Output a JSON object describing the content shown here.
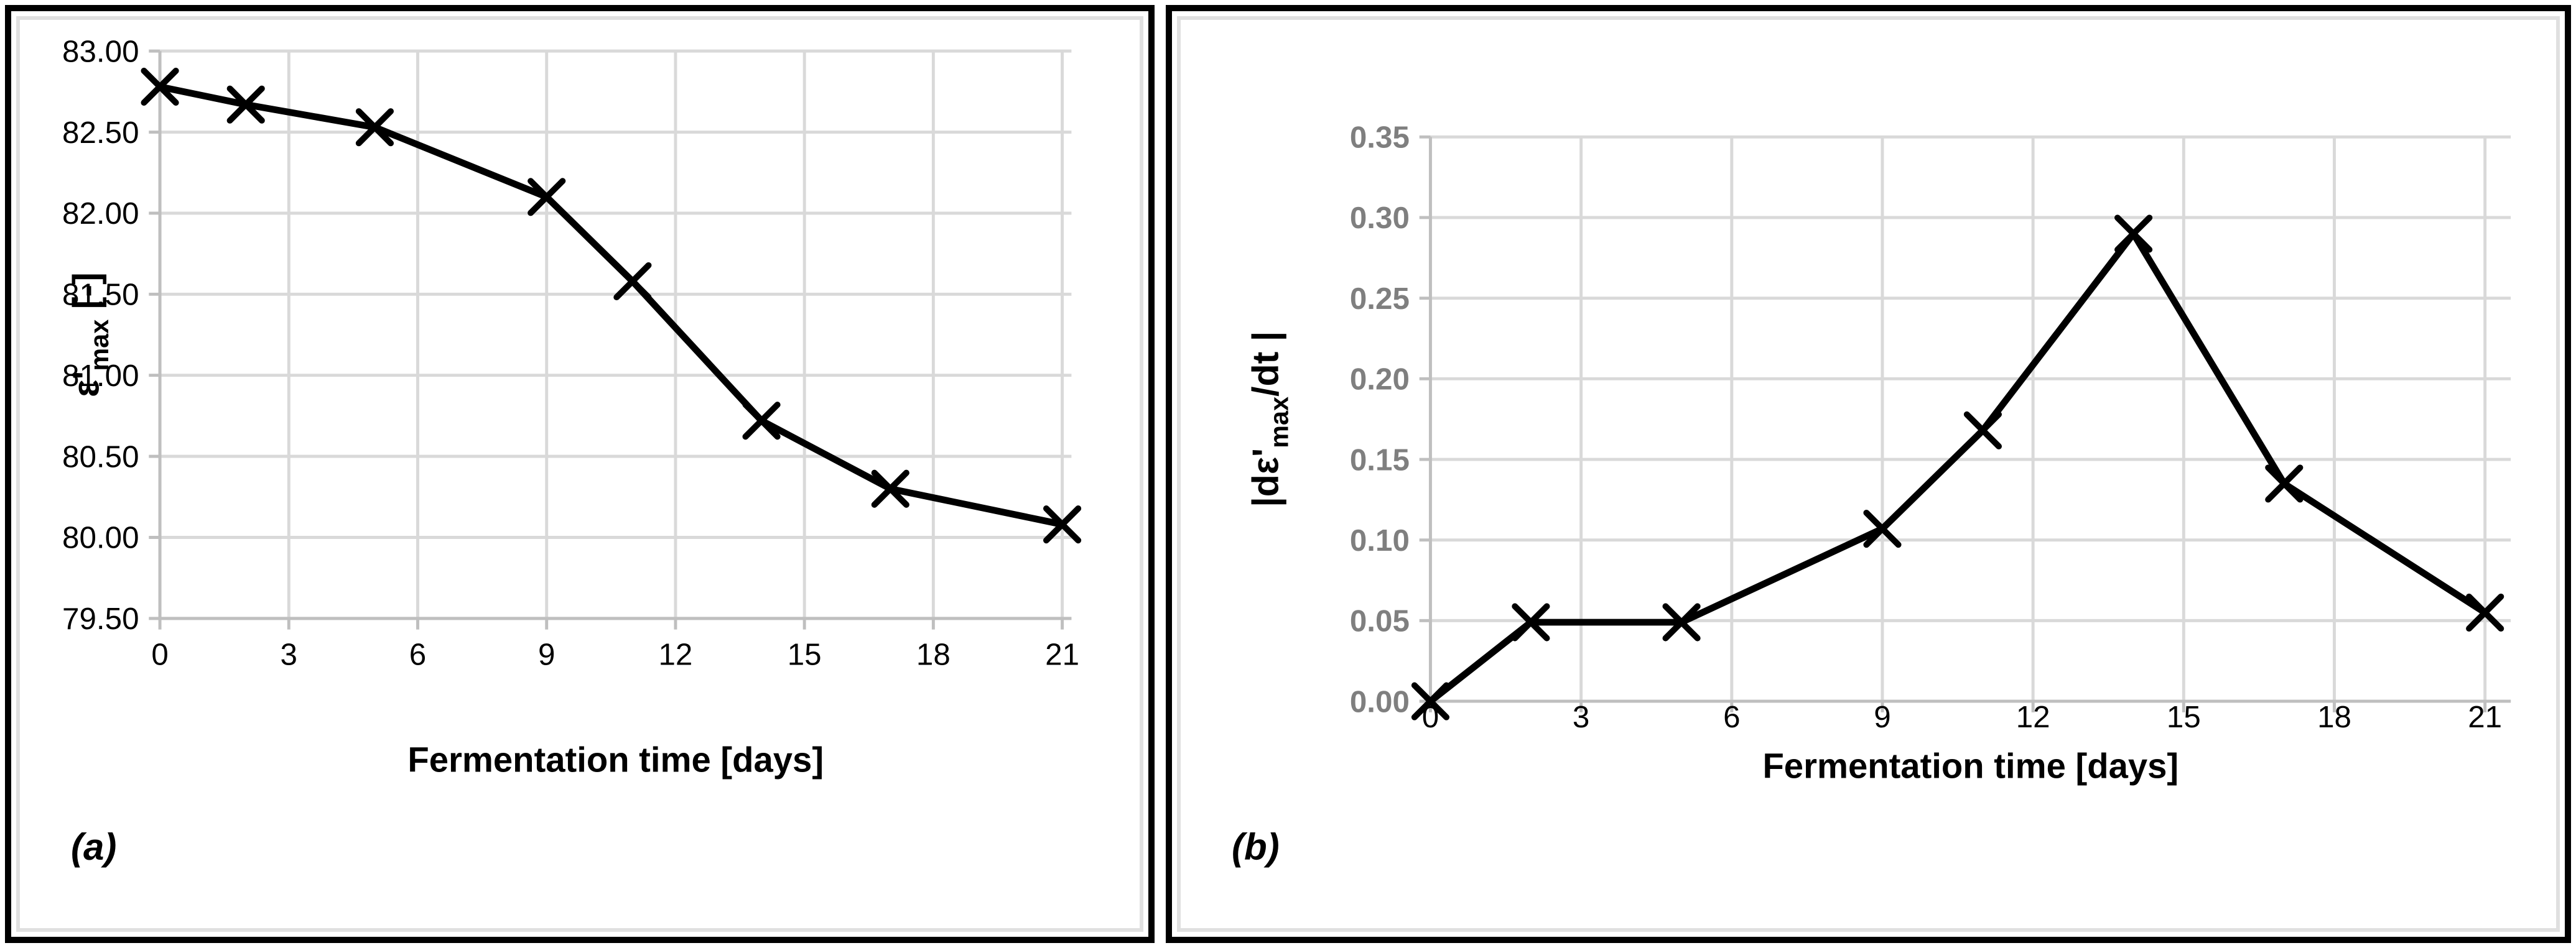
{
  "figure": {
    "panel_a_label": "(a)",
    "panel_b_label": "(b)"
  },
  "chart_data": [
    {
      "type": "line",
      "corner_label": "(a)",
      "xlabel": "Fermentation time [days]",
      "ylabel": "ε'max [-]",
      "ylabel_parts": [
        {
          "text": "ε'",
          "sub": false
        },
        {
          "text": "max",
          "sub": true
        },
        {
          "text": " [-]",
          "sub": false
        }
      ],
      "x": [
        0,
        2,
        5,
        9,
        11,
        14,
        17,
        21
      ],
      "y": [
        82.78,
        82.67,
        82.53,
        82.1,
        81.58,
        80.72,
        80.3,
        80.08
      ],
      "xlim": [
        0,
        21
      ],
      "ylim": [
        79.5,
        83.0
      ],
      "xticks": [
        "0",
        "3",
        "6",
        "9",
        "12",
        "15",
        "18",
        "21"
      ],
      "xtick_values": [
        0,
        3,
        6,
        9,
        12,
        15,
        18,
        21
      ],
      "yticks": [
        "83.00",
        "82.50",
        "82.00",
        "81.50",
        "81.00",
        "80.50",
        "80.00",
        "79.50"
      ],
      "ytick_values": [
        83.0,
        82.5,
        82.0,
        81.5,
        81.0,
        80.5,
        80.0,
        79.5
      ],
      "grid": true,
      "legend": "none",
      "marker": "x",
      "line_color": "#000000",
      "grid_color": "#d9d9d9",
      "axis_color": "#bfbfbf",
      "ytick_label_color": "#000000",
      "xtick_label_color": "#000000",
      "ytick_label_bold": false
    },
    {
      "type": "line",
      "corner_label": "(b)",
      "xlabel": "Fermentation time [days]",
      "ylabel": "|dε'max/dt |",
      "ylabel_parts": [
        {
          "text": "|dε'",
          "sub": false
        },
        {
          "text": "max",
          "sub": true
        },
        {
          "text": "/dt |",
          "sub": false
        }
      ],
      "x": [
        0,
        2,
        5,
        9,
        11,
        14,
        17,
        21
      ],
      "y": [
        0.0,
        0.049,
        0.049,
        0.107,
        0.168,
        0.29,
        0.135,
        0.055
      ],
      "xlim": [
        0,
        21
      ],
      "ylim": [
        0.0,
        0.35
      ],
      "xticks": [
        "0",
        "3",
        "6",
        "9",
        "12",
        "15",
        "18",
        "21"
      ],
      "xtick_values": [
        0,
        3,
        6,
        9,
        12,
        15,
        18,
        21
      ],
      "yticks": [
        "0.35",
        "0.30",
        "0.25",
        "0.20",
        "0.15",
        "0.10",
        "0.05",
        "0.00"
      ],
      "ytick_values": [
        0.35,
        0.3,
        0.25,
        0.2,
        0.15,
        0.1,
        0.05,
        0.0
      ],
      "grid": true,
      "legend": "none",
      "marker": "x",
      "line_color": "#000000",
      "grid_color": "#d9d9d9",
      "axis_color": "#bfbfbf",
      "ytick_label_color": "#7f7f7f",
      "xtick_label_color": "#000000",
      "ytick_label_bold": true
    }
  ]
}
